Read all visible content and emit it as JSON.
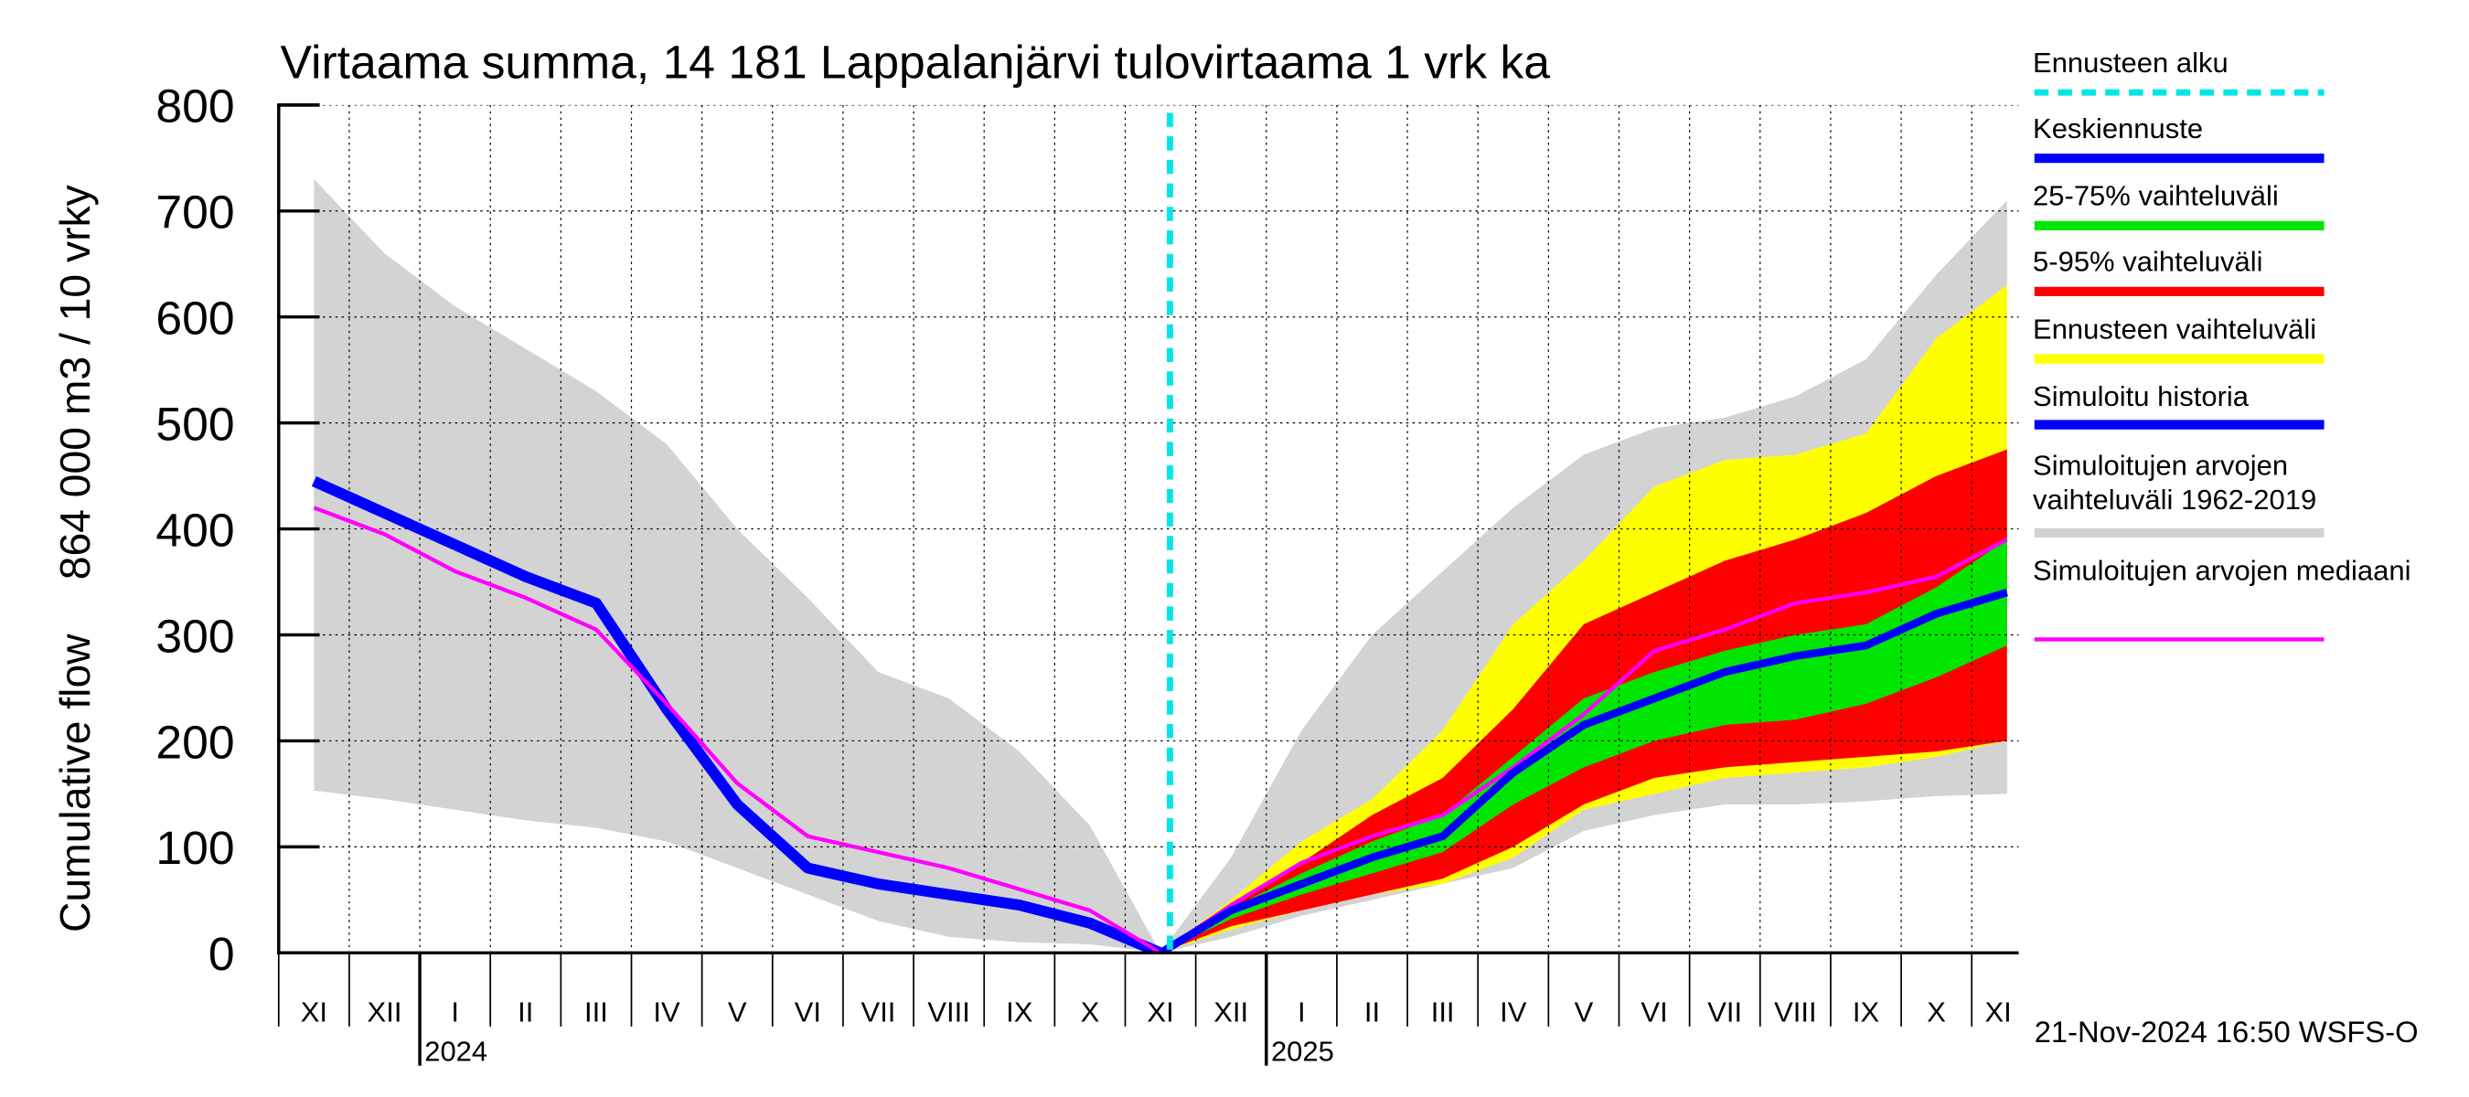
{
  "chart_data": {
    "type": "line",
    "title": "Virtaama summa, 14 181 Lappalanjärvi tulovirtaama 1 vrk ka",
    "ylabel": [
      "Cumulative flow",
      "864 000 m3 / 10 vrky"
    ],
    "footer": "21-Nov-2024 16:50 WSFS-O",
    "categories": [
      "XI",
      "XII",
      "I",
      "II",
      "III",
      "IV",
      "V",
      "VI",
      "VII",
      "VIII",
      "IX",
      "X",
      "XI",
      "XII",
      "I",
      "II",
      "III",
      "IV",
      "V",
      "VI",
      "VII",
      "VIII",
      "IX",
      "X",
      "XI"
    ],
    "x_year_labels": [
      null,
      null,
      "2024",
      null,
      null,
      null,
      null,
      null,
      null,
      null,
      null,
      null,
      null,
      null,
      "2025",
      null,
      null,
      null,
      null,
      null,
      null,
      null,
      null,
      null,
      null
    ],
    "ylim": [
      0,
      800
    ],
    "yticks": [
      0,
      100,
      200,
      300,
      400,
      500,
      600,
      700,
      800
    ],
    "grid": true,
    "series": [
      {
        "name": "Ennusteen alku",
        "color": "#00e5e5",
        "style": "vline"
      },
      {
        "name": "Keskiennuste",
        "color": "#0000ff",
        "style": "line",
        "width": 5,
        "values": [
          null,
          null,
          null,
          null,
          null,
          null,
          null,
          null,
          null,
          null,
          null,
          null,
          0,
          40,
          65,
          90,
          110,
          170,
          215,
          240,
          265,
          280,
          290,
          320,
          340
        ]
      },
      {
        "name": "25-75% vaihteluväli",
        "color": "#00e600",
        "style": "band",
        "upper": [
          null,
          null,
          null,
          null,
          null,
          null,
          null,
          null,
          null,
          null,
          null,
          null,
          0,
          42,
          75,
          105,
          130,
          185,
          240,
          265,
          285,
          300,
          310,
          345,
          390
        ],
        "lower": [
          null,
          null,
          null,
          null,
          null,
          null,
          null,
          null,
          null,
          null,
          null,
          null,
          0,
          32,
          55,
          75,
          95,
          140,
          175,
          200,
          215,
          220,
          235,
          260,
          290
        ]
      },
      {
        "name": "5-95% vaihteluväli",
        "color": "#ff0000",
        "style": "band",
        "upper": [
          null,
          null,
          null,
          null,
          null,
          null,
          null,
          null,
          null,
          null,
          null,
          null,
          0,
          45,
          85,
          130,
          165,
          230,
          310,
          340,
          370,
          390,
          415,
          450,
          475
        ],
        "lower": [
          null,
          null,
          null,
          null,
          null,
          null,
          null,
          null,
          null,
          null,
          null,
          null,
          0,
          25,
          40,
          55,
          70,
          100,
          140,
          165,
          175,
          180,
          185,
          190,
          200
        ]
      },
      {
        "name": "Ennusteen vaihteluväli",
        "color": "#ffff00",
        "style": "band",
        "upper": [
          null,
          null,
          null,
          null,
          null,
          null,
          null,
          null,
          null,
          null,
          null,
          null,
          0,
          50,
          105,
          145,
          210,
          310,
          370,
          440,
          465,
          470,
          490,
          580,
          630
        ],
        "lower": [
          null,
          null,
          null,
          null,
          null,
          null,
          null,
          null,
          null,
          null,
          null,
          null,
          0,
          22,
          40,
          55,
          65,
          90,
          135,
          150,
          165,
          170,
          175,
          185,
          200
        ]
      },
      {
        "name": "Simuloitu historia",
        "color": "#0000ff",
        "style": "line",
        "width": 7,
        "values": [
          445,
          415,
          385,
          355,
          330,
          230,
          140,
          80,
          65,
          55,
          45,
          28,
          0,
          null,
          null,
          null,
          null,
          null,
          null,
          null,
          null,
          null,
          null,
          null,
          null
        ]
      },
      {
        "name": "Simuloitujen arvojen vaihteluväli 1962-2019",
        "color": "#d3d3d3",
        "style": "band",
        "upper": [
          730,
          660,
          610,
          570,
          530,
          480,
          400,
          335,
          265,
          240,
          190,
          120,
          0,
          90,
          210,
          300,
          360,
          420,
          470,
          495,
          505,
          525,
          560,
          640,
          710
        ],
        "lower": [
          153,
          145,
          135,
          125,
          118,
          105,
          80,
          55,
          30,
          15,
          10,
          8,
          0,
          15,
          35,
          50,
          65,
          80,
          115,
          130,
          140,
          140,
          143,
          148,
          150
        ]
      },
      {
        "name": "Simuloitujen arvojen mediaani",
        "color": "#ff00ff",
        "style": "line",
        "width": 2.5,
        "values": [
          420,
          395,
          360,
          335,
          305,
          235,
          160,
          110,
          95,
          80,
          60,
          40,
          0,
          45,
          85,
          110,
          130,
          175,
          225,
          285,
          305,
          330,
          340,
          355,
          390
        ]
      }
    ]
  }
}
